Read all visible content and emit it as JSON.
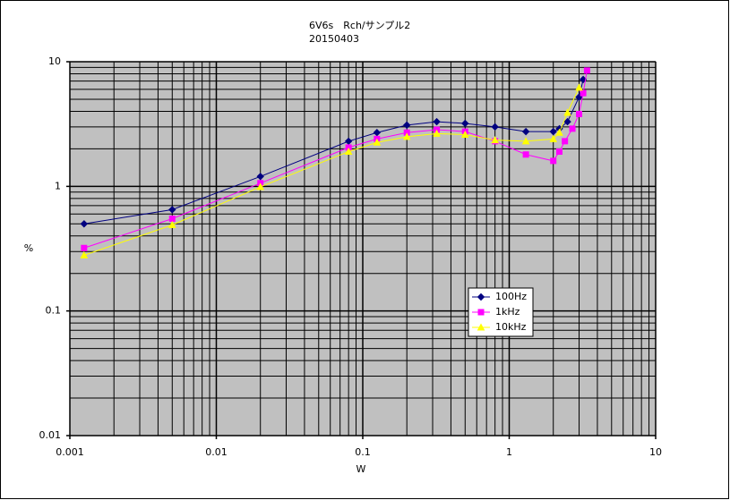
{
  "chart_data": {
    "type": "line",
    "title": "6V6s　Rch/サンプル2",
    "subtitle": "20150403",
    "x_label": "W",
    "y_label": "%",
    "log_x": true,
    "log_y": true,
    "grid": true,
    "xlim": [
      0.001,
      10
    ],
    "xticks": [
      0.001,
      0.01,
      0.1,
      1,
      10
    ],
    "ylim": [
      0.01,
      10
    ],
    "yticks": [
      0.01,
      0.1,
      1,
      10
    ],
    "legend_position": "right",
    "series": [
      {
        "name": "100Hz",
        "color": "#000080",
        "marker": "diamond",
        "x": [
          0.00125,
          0.005,
          0.02,
          0.08,
          0.125,
          0.2,
          0.32,
          0.5,
          0.8,
          1.3,
          2,
          2.2,
          2.5,
          3,
          3.2
        ],
        "values": [
          0.5,
          0.65,
          1.2,
          2.3,
          2.7,
          3.1,
          3.3,
          3.2,
          3.0,
          2.75,
          2.75,
          2.9,
          3.3,
          5.2,
          7.2
        ]
      },
      {
        "name": "1kHz",
        "color": "#ff00ff",
        "marker": "square",
        "x": [
          0.00125,
          0.005,
          0.02,
          0.08,
          0.125,
          0.2,
          0.32,
          0.5,
          0.8,
          1.3,
          2,
          2.2,
          2.4,
          2.7,
          3,
          3.2,
          3.4
        ],
        "values": [
          0.32,
          0.55,
          1.06,
          2.05,
          2.4,
          2.7,
          2.85,
          2.75,
          2.3,
          1.8,
          1.6,
          1.9,
          2.3,
          2.9,
          3.8,
          5.6,
          8.5
        ]
      },
      {
        "name": "10kHz",
        "color": "#ffff00",
        "marker": "triangle",
        "x": [
          0.00125,
          0.005,
          0.02,
          0.08,
          0.125,
          0.2,
          0.32,
          0.5,
          0.8,
          1.3,
          2,
          2.2,
          2.5,
          3
        ],
        "values": [
          0.28,
          0.49,
          0.99,
          1.9,
          2.25,
          2.5,
          2.65,
          2.6,
          2.35,
          2.3,
          2.4,
          2.7,
          3.9,
          6.2
        ]
      }
    ]
  }
}
